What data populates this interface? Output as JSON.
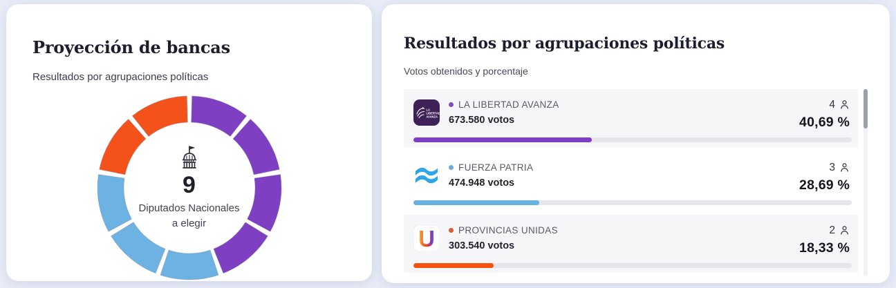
{
  "seats_card": {
    "title": "Proyección de bancas",
    "subtitle": "Resultados por agrupaciones políticas",
    "center_icon": "capitol-icon",
    "center_value": "9",
    "center_line1": "Diputados Nacionales",
    "center_line2": "a elegir"
  },
  "results_card": {
    "title": "Resultados por agrupaciones políticas",
    "subtitle": "Votos obtenidos y porcentaje",
    "rows": [
      {
        "party": "LA LIBERTAD AVANZA",
        "votes": "673.580 votos",
        "votes_value": 673580,
        "seats": "4",
        "percent": "40,69 %",
        "percent_value": 40.69,
        "bar_color": "#7b3ec4",
        "bullet_color": "#7b52b8",
        "logo": "la-libertad-avanza-logo"
      },
      {
        "party": "FUERZA PATRIA",
        "votes": "474.948 votos",
        "votes_value": 474948,
        "seats": "3",
        "percent": "28,69 %",
        "percent_value": 28.69,
        "bar_color": "#66b0e2",
        "bullet_color": "#6ea9d8",
        "logo": "fuerza-patria-logo"
      },
      {
        "party": "PROVINCIAS UNIDAS",
        "votes": "303.540 votos",
        "votes_value": 303540,
        "seats": "2",
        "percent": "18,33 %",
        "percent_value": 18.33,
        "bar_color": "#f4530f",
        "bullet_color": "#df5b31",
        "logo": "provincias-unidas-logo"
      }
    ]
  },
  "chart_data": [
    {
      "type": "pie",
      "donut": true,
      "title": "Proyección de bancas",
      "subtitle": "Resultados por agrupaciones políticas",
      "total_seats": 9,
      "center_text": "9 Diputados Nacionales a elegir",
      "segments_equal_per_seat": true,
      "start_angle_deg": 0,
      "slices": [
        {
          "label": "LA LIBERTAD AVANZA",
          "value": 4,
          "color": "#7e3fc3"
        },
        {
          "label": "FUERZA PATRIA",
          "value": 3,
          "color": "#6cb3e4"
        },
        {
          "label": "PROVINCIAS UNIDAS",
          "value": 2,
          "color": "#f5521b"
        }
      ]
    },
    {
      "type": "bar",
      "title": "Resultados por agrupaciones políticas",
      "categories": [
        "LA LIBERTAD AVANZA",
        "FUERZA PATRIA",
        "PROVINCIAS UNIDAS"
      ],
      "series": [
        {
          "name": "votos",
          "values": [
            673580,
            474948,
            303540
          ]
        },
        {
          "name": "porcentaje",
          "values": [
            40.69,
            28.69,
            18.33
          ]
        },
        {
          "name": "bancas",
          "values": [
            4,
            3,
            2
          ]
        }
      ],
      "xlim_percent": [
        0,
        100
      ]
    }
  ],
  "colors": {
    "page_background": "#e9ecf7",
    "card_background": "#ffffff",
    "row_stripe": "#f6f6f9",
    "bar_track": "#e5e5eb",
    "purple": "#7b3ec4",
    "blue": "#66b0e2",
    "orange": "#f4530f"
  }
}
